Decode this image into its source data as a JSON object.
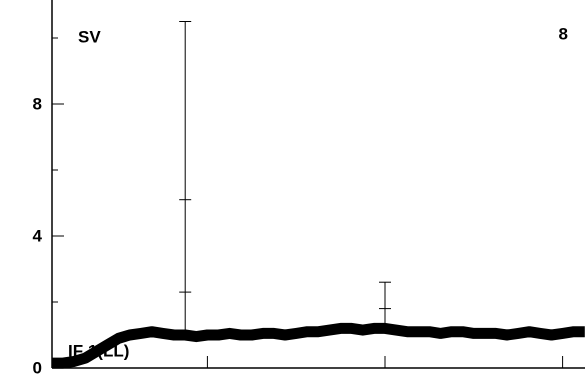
{
  "chart_data": {
    "type": "line",
    "annotations": [
      "SV",
      "8",
      "IF 1(LL)"
    ],
    "x": [
      0,
      2,
      4,
      6,
      8,
      10,
      12,
      14,
      16,
      18,
      20,
      22,
      24,
      26,
      28,
      30,
      32,
      34,
      36,
      38,
      40,
      42,
      44,
      46,
      48,
      50,
      52,
      54,
      56,
      58,
      60,
      62,
      64,
      66,
      68,
      70,
      72,
      74,
      76,
      78,
      80,
      82,
      84,
      86,
      88,
      90,
      92,
      94,
      96
    ],
    "series": [
      {
        "color": "#000000",
        "values": [
          0.15,
          0.15,
          0.2,
          0.3,
          0.5,
          0.7,
          0.9,
          1.0,
          1.05,
          1.1,
          1.05,
          1.0,
          1.0,
          0.95,
          1.0,
          1.0,
          1.05,
          1.0,
          1.0,
          1.05,
          1.05,
          1.0,
          1.05,
          1.1,
          1.1,
          1.15,
          1.2,
          1.2,
          1.15,
          1.2,
          1.2,
          1.15,
          1.1,
          1.1,
          1.1,
          1.05,
          1.1,
          1.1,
          1.05,
          1.05,
          1.05,
          1.0,
          1.05,
          1.1,
          1.05,
          1.0,
          1.05,
          1.1,
          1.1
        ]
      }
    ],
    "spikes": [
      {
        "x": 24,
        "values": [
          2.3,
          5.1,
          10.5
        ]
      },
      {
        "x": 60,
        "values": [
          1.8,
          2.6
        ]
      }
    ],
    "xlim": [
      0,
      100
    ],
    "xticks": [
      28,
      60,
      92
    ],
    "ylim": [
      0,
      11.2
    ],
    "yticks": [
      0,
      4,
      8
    ],
    "yminor": [
      2,
      6,
      10
    ]
  }
}
